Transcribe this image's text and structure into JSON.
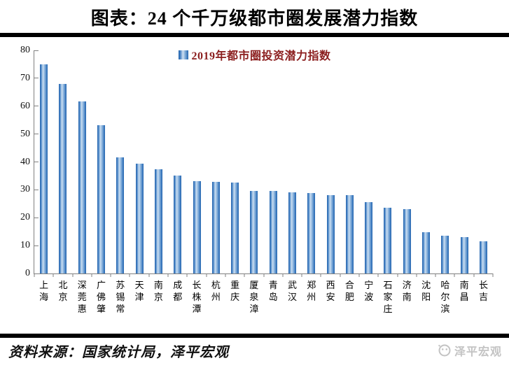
{
  "page": {
    "title": "图表：24 个千万级都市圈发展潜力指数"
  },
  "legend": {
    "label": "2019年都市圈投资潜力指数"
  },
  "chart_data": {
    "type": "bar",
    "title": "图表：24 个千万级都市圈发展潜力指数",
    "legend": [
      "2019年都市圈投资潜力指数"
    ],
    "legend_position": "top-center",
    "categories": [
      "上海",
      "北京",
      "深莞惠",
      "广佛肇",
      "苏锡常",
      "天津",
      "南京",
      "成都",
      "长株潭",
      "杭州",
      "重庆",
      "厦泉漳",
      "青岛",
      "武汉",
      "郑州",
      "西安",
      "合肥",
      "宁波",
      "石家庄",
      "济南",
      "沈阳",
      "哈尔滨",
      "南昌",
      "长吉"
    ],
    "values": [
      75.0,
      68.0,
      61.8,
      53.2,
      41.6,
      39.4,
      37.4,
      35.0,
      33.0,
      32.8,
      32.5,
      29.7,
      29.5,
      29.2,
      28.8,
      28.1,
      28.0,
      25.6,
      23.7,
      23.2,
      14.8,
      13.5,
      13.0,
      11.6
    ],
    "xlabel": "",
    "ylabel": "",
    "ylim": [
      0,
      80
    ],
    "yticks": [
      0,
      10,
      20,
      30,
      40,
      50,
      60,
      70,
      80
    ],
    "grid": false
  },
  "footer": {
    "source": "资料来源：国家统计局，泽平宏观",
    "watermark": "泽平宏观"
  },
  "colors": {
    "bar_edge": "#2465ae",
    "bar_center": "#cfe0f1",
    "legend_text": "#8b1e1e",
    "axis": "#808080",
    "rule": "#000000",
    "watermark": "#c3c3c3",
    "title_text": "#000000"
  }
}
